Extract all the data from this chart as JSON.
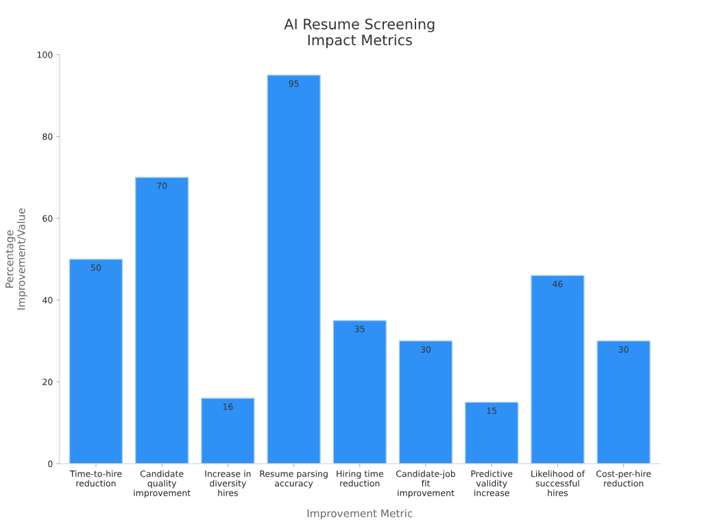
{
  "chart_data": {
    "type": "bar",
    "title": "AI Resume Screening\nImpact Metrics",
    "xlabel": "Improvement Metric",
    "ylabel": "Percentage\nImprovement/Value",
    "categories": [
      "Time-to-hire\nreduction",
      "Candidate\nquality\nimprovement",
      "Increase in\ndiversity\nhires",
      "Resume parsing\naccuracy",
      "Hiring time\nreduction",
      "Candidate-job\nfit\nimprovement",
      "Predictive\nvalidity\nincrease",
      "Likelihood of\nsuccessful\nhires",
      "Cost-per-hire\nreduction"
    ],
    "values": [
      50,
      70,
      16,
      95,
      35,
      30,
      15,
      46,
      30
    ],
    "color": "#2f91f5",
    "ylim": [
      0,
      100
    ],
    "yticks": [
      0,
      20,
      40,
      60,
      80,
      100
    ],
    "grid": false,
    "data_labels": true
  }
}
